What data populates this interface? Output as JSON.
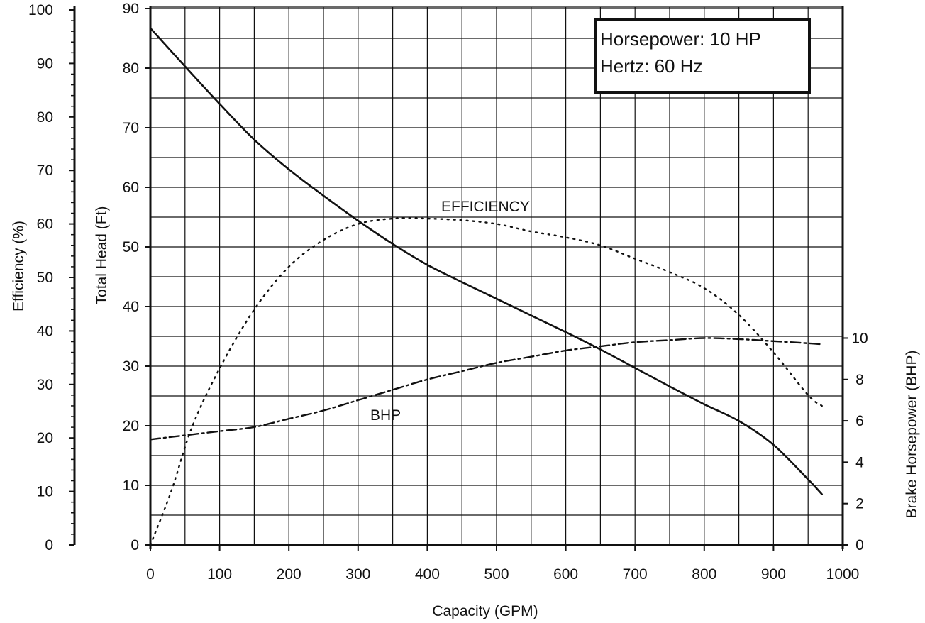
{
  "chart_data": {
    "type": "line",
    "xlabel": "Capacity (GPM)",
    "x_ticks": [
      "0",
      "100",
      "200",
      "300",
      "400",
      "500",
      "600",
      "700",
      "800",
      "900",
      "1000"
    ],
    "xlim": [
      0,
      1000
    ],
    "y_axes": [
      {
        "id": "efficiency",
        "label": "Efficiency (%)",
        "range": [
          0,
          100
        ],
        "ticks": [
          "0",
          "10",
          "20",
          "30",
          "40",
          "50",
          "60",
          "70",
          "80",
          "90",
          "100"
        ]
      },
      {
        "id": "head",
        "label": "Total Head (Ft)",
        "range": [
          0,
          90
        ],
        "ticks": [
          "0",
          "10",
          "20",
          "30",
          "40",
          "50",
          "60",
          "70",
          "80",
          "90"
        ]
      },
      {
        "id": "bhp",
        "label": "Brake Horsepower (BHP)",
        "range": [
          0,
          26
        ],
        "ticks": [
          "0",
          "2",
          "4",
          "6",
          "8",
          "10"
        ]
      }
    ],
    "series": [
      {
        "name": "",
        "axis": "head",
        "style": "solid",
        "x": [
          0,
          50,
          100,
          150,
          200,
          250,
          300,
          350,
          400,
          450,
          500,
          550,
          600,
          650,
          700,
          750,
          800,
          850,
          900,
          950,
          970
        ],
        "y": [
          86.7,
          80.3,
          74.0,
          68.0,
          63.0,
          58.6,
          54.4,
          50.5,
          47.0,
          44.1,
          41.3,
          38.5,
          35.7,
          32.8,
          29.7,
          26.6,
          23.6,
          20.8,
          16.8,
          11.0,
          8.5
        ]
      },
      {
        "name": "",
        "axis": "efficiency",
        "style": "dotted",
        "x": [
          0,
          30,
          60,
          100,
          150,
          200,
          250,
          300,
          350,
          400,
          450,
          500,
          550,
          600,
          650,
          700,
          750,
          800,
          850,
          900,
          950,
          970
        ],
        "y": [
          0,
          10,
          22,
          33,
          44,
          52,
          57,
          60,
          61,
          61,
          60.7,
          60,
          58.6,
          57.5,
          56,
          53.5,
          51,
          48,
          43,
          36,
          28,
          26
        ]
      },
      {
        "name": "",
        "axis": "bhp",
        "style": "dash-dot",
        "x": [
          0,
          50,
          100,
          150,
          200,
          250,
          300,
          350,
          400,
          450,
          500,
          550,
          600,
          650,
          700,
          750,
          800,
          850,
          900,
          950,
          970
        ],
        "y": [
          5.1,
          5.3,
          5.5,
          5.7,
          6.1,
          6.5,
          7.0,
          7.5,
          8.0,
          8.4,
          8.8,
          9.1,
          9.4,
          9.6,
          9.8,
          9.9,
          10.0,
          9.95,
          9.85,
          9.75,
          9.7
        ]
      }
    ],
    "annotations": [
      "EFFICIENCY",
      "BHP"
    ],
    "info_box": {
      "line1": "Horsepower: 10 HP",
      "line2": "Hertz: 60 Hz",
      "placement": "top-right"
    },
    "grid": true,
    "colors": {
      "line": "#111111",
      "grid": "#111111",
      "background": "#ffffff"
    }
  }
}
